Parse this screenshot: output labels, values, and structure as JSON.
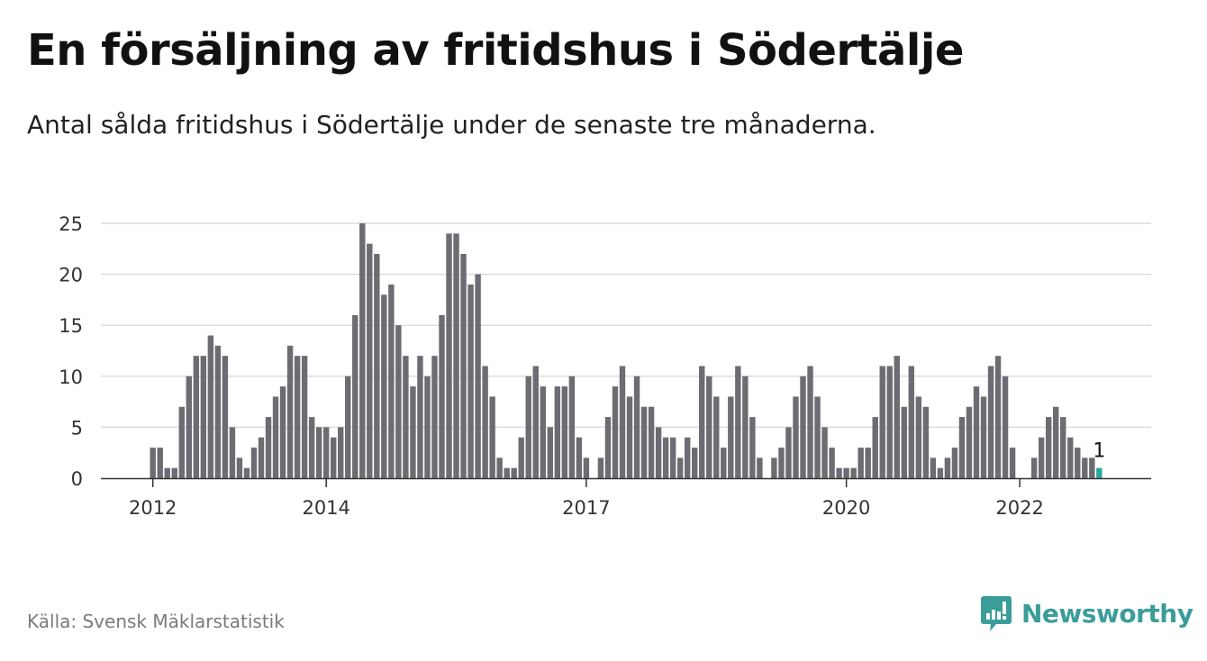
{
  "header": {
    "title": "En försäljning av fritidshus i Södertälje",
    "subtitle": "Antal sålda fritidshus i Södertälje under de senaste tre månaderna."
  },
  "footer": {
    "source": "Källa: Svensk Mäklarstatistik",
    "brand": "Newsworthy"
  },
  "colors": {
    "bar": "#6d6c72",
    "highlight": "#2aa79b",
    "grid": "#dcdcdc",
    "axis": "#333333",
    "brand": "#3a9d9a"
  },
  "chart_data": {
    "type": "bar",
    "title": "En försäljning av fritidshus i Södertälje",
    "xlabel": "",
    "ylabel": "",
    "ylim": [
      0,
      25
    ],
    "yticks": [
      0,
      5,
      10,
      15,
      20,
      25
    ],
    "grid": true,
    "legend": "none",
    "start_month": "2012-01",
    "x_ticks": [
      {
        "label": "2012",
        "month": "2012-01"
      },
      {
        "label": "2014",
        "month": "2014-01"
      },
      {
        "label": "2017",
        "month": "2017-01"
      },
      {
        "label": "2020",
        "month": "2020-01"
      },
      {
        "label": "2022",
        "month": "2022-01"
      }
    ],
    "values": [
      3,
      3,
      1,
      1,
      7,
      10,
      12,
      12,
      14,
      13,
      12,
      5,
      2,
      1,
      3,
      4,
      6,
      8,
      9,
      13,
      12,
      12,
      6,
      5,
      5,
      4,
      5,
      10,
      16,
      25,
      23,
      22,
      18,
      19,
      15,
      12,
      9,
      12,
      10,
      12,
      16,
      24,
      24,
      22,
      19,
      20,
      11,
      8,
      2,
      1,
      1,
      4,
      10,
      11,
      9,
      5,
      9,
      9,
      10,
      4,
      2,
      0,
      2,
      6,
      9,
      11,
      8,
      10,
      7,
      7,
      5,
      4,
      4,
      2,
      4,
      3,
      11,
      10,
      8,
      3,
      8,
      11,
      10,
      6,
      2,
      0,
      2,
      3,
      5,
      8,
      10,
      11,
      8,
      5,
      3,
      1,
      1,
      1,
      3,
      3,
      6,
      11,
      11,
      12,
      7,
      11,
      8,
      7,
      2,
      1,
      2,
      3,
      6,
      7,
      9,
      8,
      11,
      12,
      10,
      3,
      0,
      0,
      2,
      4,
      6,
      7,
      6,
      4,
      3,
      2,
      2,
      1
    ],
    "highlight_index": 131,
    "annotation": {
      "label": "1",
      "index": 131
    }
  }
}
